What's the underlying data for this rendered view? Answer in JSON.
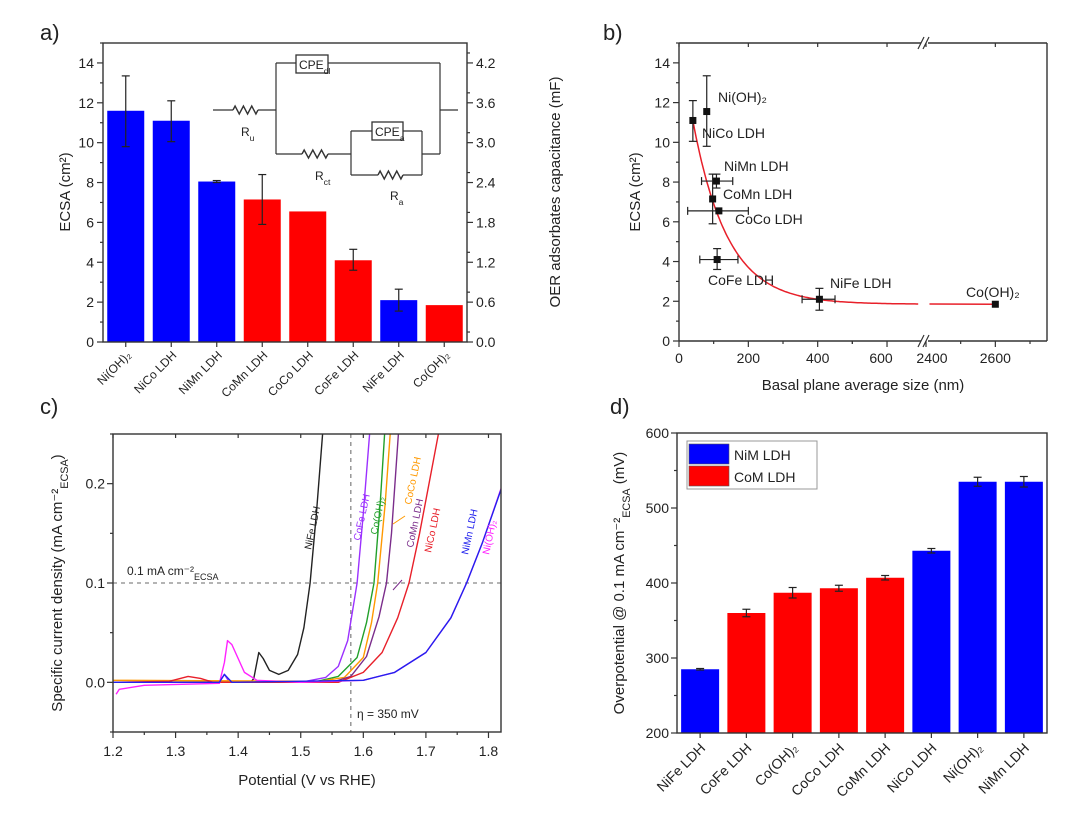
{
  "chart_data": [
    {
      "panel": "a)",
      "type": "bar",
      "ylabel": {
        "text": "ECSA (cm²)"
      },
      "ylabel_right": {
        "text": "OER adsorbates capacitance (mF)"
      },
      "ylim": [
        0,
        15
      ],
      "yticks": [
        "0",
        "2",
        "4",
        "6",
        "8",
        "10",
        "12",
        "14"
      ],
      "ylim_right": [
        0,
        4.5
      ],
      "yticks_right": [
        "0.0",
        "0.6",
        "1.2",
        "1.8",
        "2.4",
        "3.0",
        "3.6",
        "4.2"
      ],
      "categories": [
        "Ni(OH)₂",
        "NiCo LDH",
        "NiMn LDH",
        "CoMn LDH",
        "CoCo LDH",
        "CoFe LDH",
        "NiFe LDH",
        "Co(OH)₂"
      ],
      "values": [
        11.6,
        11.1,
        8.05,
        7.15,
        6.55,
        4.1,
        2.1,
        1.85
      ],
      "error_low": [
        9.8,
        10.05,
        8.0,
        5.9,
        null,
        3.6,
        1.55,
        null
      ],
      "error_high": [
        13.35,
        12.1,
        8.1,
        8.4,
        null,
        4.65,
        2.65,
        null
      ],
      "colors": [
        "#0000ff",
        "#0000ff",
        "#0000ff",
        "#ff0000",
        "#ff0000",
        "#ff0000",
        "#0000ff",
        "#ff0000"
      ],
      "inset_circuit": {
        "cpe_dl": {
          "main": "CPE",
          "sub": "dl"
        },
        "cpe_a": {
          "main": "CPE",
          "sub": "a"
        },
        "r_u": {
          "main": "R",
          "sub": "u"
        },
        "r_ct": {
          "main": "R",
          "sub": "ct"
        },
        "r_a": {
          "main": "R",
          "sub": "a"
        }
      }
    },
    {
      "panel": "b)",
      "type": "scatter",
      "xlabel": "Basal plane average size (nm)",
      "ylabel": {
        "text": "ECSA (cm²)"
      },
      "ylim": [
        0,
        15
      ],
      "yticks": [
        "0",
        "2",
        "4",
        "6",
        "8",
        "10",
        "12",
        "14"
      ],
      "xlim": [
        0,
        2750
      ],
      "x_break": [
        700,
        2400
      ],
      "xticks": [
        "0",
        "200",
        "400",
        "600",
        "2400",
        "2600"
      ],
      "fit_line_color": "#e8202a",
      "points": [
        {
          "label": "Ni(OH)₂",
          "x": 80,
          "y": 11.55,
          "y_err": [
            9.8,
            13.35
          ]
        },
        {
          "label": "NiCo LDH",
          "x": 40,
          "y": 11.1,
          "y_err": [
            10.05,
            12.1
          ]
        },
        {
          "label": "NiMn LDH",
          "x": 108,
          "y": 8.05,
          "x_err": [
            65,
            155
          ],
          "y_err": [
            7.7,
            8.4
          ]
        },
        {
          "label": "CoMn LDH",
          "x": 97,
          "y": 7.15,
          "y_err": [
            5.9,
            8.4
          ]
        },
        {
          "label": "CoCo LDH",
          "x": 115,
          "y": 6.55,
          "x_err": [
            25,
            200
          ]
        },
        {
          "label": "CoFe LDH",
          "x": 110,
          "y": 4.1,
          "x_err": [
            60,
            170
          ],
          "y_err": [
            3.6,
            4.65
          ]
        },
        {
          "label": "NiFe LDH",
          "x": 405,
          "y": 2.1,
          "x_err": [
            355,
            450
          ],
          "y_err": [
            1.55,
            2.65
          ]
        },
        {
          "label": "Co(OH)₂",
          "x": 2600,
          "y": 1.85
        }
      ]
    },
    {
      "panel": "c)",
      "type": "line",
      "xlabel": "Potential (V vs RHE)",
      "ylabel": {
        "text": "Specific current density (mA cm⁻²",
        "sub": "ECSA",
        "end": ")"
      },
      "xlim": [
        1.2,
        1.82
      ],
      "ylim": [
        -0.05,
        0.25
      ],
      "xticks": [
        "1.2",
        "1.3",
        "1.4",
        "1.5",
        "1.6",
        "1.7",
        "1.8"
      ],
      "yticks": [
        "0.0",
        "0.1",
        "0.2"
      ],
      "hline": {
        "y": 0.1,
        "label": "0.1 mA cm⁻²",
        "label_sub": "ECSA"
      },
      "vline": {
        "x": 1.58,
        "label": "η = 350 mV"
      },
      "series": [
        {
          "name": "NiFe LDH",
          "color": "#222222",
          "points": [
            [
              1.2,
              0
            ],
            [
              1.42,
              0
            ],
            [
              1.425,
              0.004
            ],
            [
              1.433,
              0.03
            ],
            [
              1.44,
              0.024
            ],
            [
              1.45,
              0.012
            ],
            [
              1.465,
              0.008
            ],
            [
              1.48,
              0.012
            ],
            [
              1.495,
              0.028
            ],
            [
              1.505,
              0.055
            ],
            [
              1.515,
              0.1
            ],
            [
              1.525,
              0.17
            ],
            [
              1.535,
              0.25
            ]
          ]
        },
        {
          "name": "CoFe LDH",
          "color": "#9b30ff",
          "points": [
            [
              1.2,
              0
            ],
            [
              1.37,
              0
            ],
            [
              1.378,
              0.008
            ],
            [
              1.386,
              0
            ],
            [
              1.5,
              0
            ],
            [
              1.54,
              0.005
            ],
            [
              1.56,
              0.016
            ],
            [
              1.575,
              0.042
            ],
            [
              1.59,
              0.1
            ],
            [
              1.6,
              0.17
            ],
            [
              1.61,
              0.25
            ]
          ]
        },
        {
          "name": "Co(OH)₂",
          "color": "#22a02a",
          "points": [
            [
              1.2,
              0
            ],
            [
              1.52,
              0
            ],
            [
              1.56,
              0.006
            ],
            [
              1.59,
              0.025
            ],
            [
              1.605,
              0.06
            ],
            [
              1.617,
              0.1
            ],
            [
              1.627,
              0.18
            ],
            [
              1.634,
              0.25
            ]
          ]
        },
        {
          "name": "CoCo LDH",
          "color": "#ff9900",
          "points": [
            [
              1.2,
              0.002
            ],
            [
              1.53,
              0.001
            ],
            [
              1.57,
              0.005
            ],
            [
              1.6,
              0.025
            ],
            [
              1.613,
              0.06
            ],
            [
              1.623,
              0.1
            ],
            [
              1.635,
              0.18
            ],
            [
              1.643,
              0.25
            ]
          ]
        },
        {
          "name": "CoMn LDH",
          "color": "#7b2d8b",
          "points": [
            [
              1.2,
              0
            ],
            [
              1.55,
              0
            ],
            [
              1.58,
              0.006
            ],
            [
              1.605,
              0.026
            ],
            [
              1.625,
              0.066
            ],
            [
              1.637,
              0.1
            ],
            [
              1.645,
              0.15
            ],
            [
              1.656,
              0.25
            ]
          ]
        },
        {
          "name": "NiCo LDH",
          "color": "#e8202a",
          "points": [
            [
              1.2,
              0
            ],
            [
              1.29,
              0.001
            ],
            [
              1.32,
              0.006
            ],
            [
              1.34,
              0.004
            ],
            [
              1.36,
              0
            ],
            [
              1.56,
              0
            ],
            [
              1.6,
              0.01
            ],
            [
              1.63,
              0.03
            ],
            [
              1.655,
              0.065
            ],
            [
              1.673,
              0.1
            ],
            [
              1.69,
              0.15
            ],
            [
              1.705,
              0.2
            ],
            [
              1.72,
              0.25
            ]
          ]
        },
        {
          "name": "Ni(OH)₂",
          "color": "#ff22ff",
          "points": [
            [
              1.205,
              -0.012
            ],
            [
              1.21,
              -0.007
            ],
            [
              1.25,
              -0.003
            ],
            [
              1.37,
              -0.001
            ],
            [
              1.378,
              0.02
            ],
            [
              1.383,
              0.042
            ],
            [
              1.39,
              0.038
            ],
            [
              1.41,
              0.01
            ],
            [
              1.43,
              0.002
            ],
            [
              1.5,
              0
            ],
            [
              1.6,
              0.002
            ],
            [
              1.65,
              0.01
            ],
            [
              1.7,
              0.03
            ],
            [
              1.74,
              0.065
            ],
            [
              1.765,
              0.1
            ],
            [
              1.79,
              0.14
            ],
            [
              1.82,
              0.195
            ]
          ]
        },
        {
          "name": "NiMn LDH",
          "color": "#2222ee",
          "points": [
            [
              1.2,
              0
            ],
            [
              1.37,
              0
            ],
            [
              1.378,
              0.008
            ],
            [
              1.39,
              0
            ],
            [
              1.6,
              0.002
            ],
            [
              1.65,
              0.01
            ],
            [
              1.7,
              0.03
            ],
            [
              1.74,
              0.065
            ],
            [
              1.765,
              0.1
            ],
            [
              1.79,
              0.14
            ],
            [
              1.82,
              0.194
            ]
          ]
        }
      ]
    },
    {
      "panel": "d)",
      "type": "bar",
      "ylabel": {
        "text": "Overpotential @ 0.1 mA cm⁻²",
        "sub": "ECSA",
        "end": " (mV)"
      },
      "ylim": [
        200,
        600
      ],
      "yticks": [
        "200",
        "300",
        "400",
        "500",
        "600"
      ],
      "categories": [
        "NiFe LDH",
        "CoFe LDH",
        "Co(OH)₂",
        "CoCo LDH",
        "CoMn LDH",
        "NiCo LDH",
        "Ni(OH)₂",
        "NiMn LDH"
      ],
      "values": [
        285,
        360,
        387,
        393,
        407,
        443,
        535,
        535
      ],
      "errors": [
        1,
        5,
        7,
        4,
        3,
        3,
        6,
        7
      ],
      "groups": [
        "NiM LDH",
        "CoM LDH",
        "CoM LDH",
        "CoM LDH",
        "CoM LDH",
        "NiM LDH",
        "NiM LDH",
        "NiM LDH"
      ],
      "legend": [
        {
          "name": "NiM LDH",
          "color": "#0000ff"
        },
        {
          "name": "CoM LDH",
          "color": "#ff0000"
        }
      ],
      "legend_position": "top-left"
    }
  ]
}
